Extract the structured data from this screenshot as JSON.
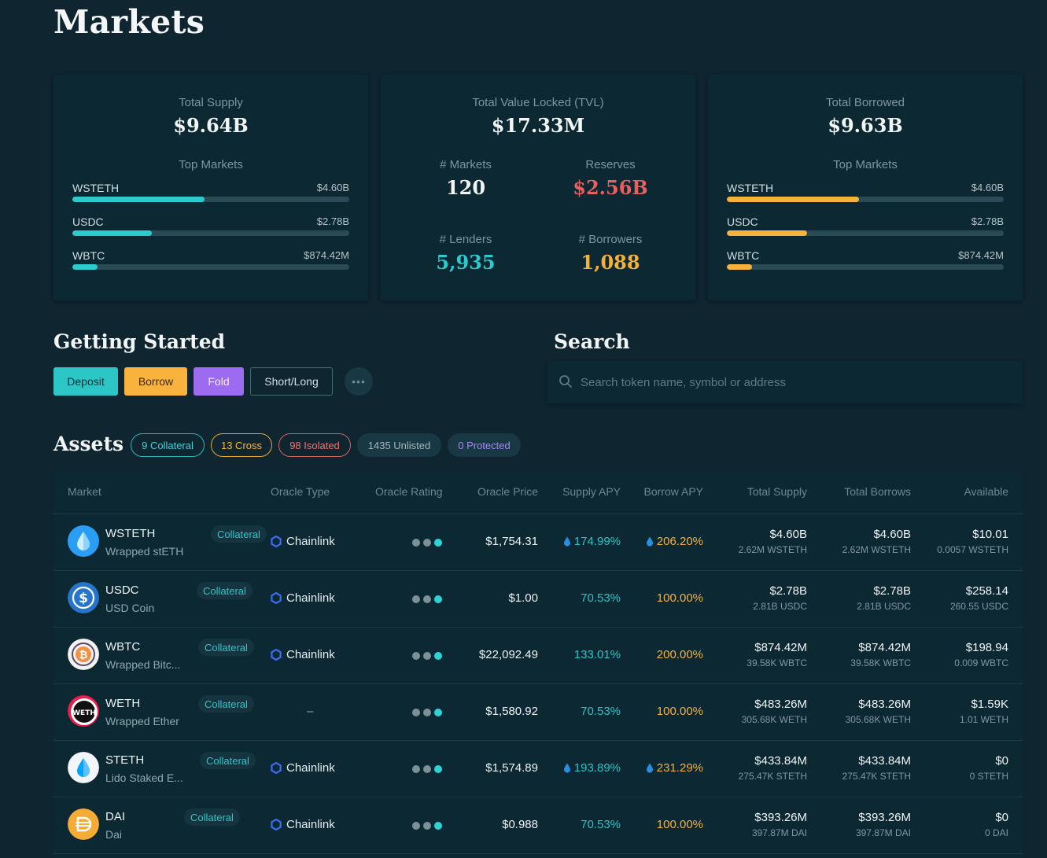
{
  "page": {
    "title": "Markets"
  },
  "summary": {
    "supply": {
      "label": "Total Supply",
      "value": "$9.64B",
      "top_label": "Top Markets",
      "bars": [
        {
          "name": "WSTETH",
          "value": "$4.60B",
          "fraction": 0.477
        },
        {
          "name": "USDC",
          "value": "$2.78B",
          "fraction": 0.288
        },
        {
          "name": "WBTC",
          "value": "$874.42M",
          "fraction": 0.091
        }
      ]
    },
    "tvl": {
      "label": "Total Value Locked (TVL)",
      "value": "$17.33M",
      "markets_label": "# Markets",
      "markets_value": "120",
      "reserves_label": "Reserves",
      "reserves_value": "$2.56B",
      "lenders_label": "# Lenders",
      "lenders_value": "5,935",
      "borrowers_label": "# Borrowers",
      "borrowers_value": "1,088"
    },
    "borrowed": {
      "label": "Total Borrowed",
      "value": "$9.63B",
      "top_label": "Top Markets",
      "bars": [
        {
          "name": "WSTETH",
          "value": "$4.60B",
          "fraction": 0.477
        },
        {
          "name": "USDC",
          "value": "$2.78B",
          "fraction": 0.289
        },
        {
          "name": "WBTC",
          "value": "$874.42M",
          "fraction": 0.091
        }
      ]
    }
  },
  "getting_started": {
    "title": "Getting Started",
    "buttons": {
      "deposit": "Deposit",
      "borrow": "Borrow",
      "fold": "Fold",
      "shortlong": "Short/Long",
      "more": "•••"
    }
  },
  "search": {
    "title": "Search",
    "placeholder": "Search token name, symbol or address"
  },
  "assets": {
    "title": "Assets",
    "filters": {
      "collateral": "9 Collateral",
      "cross": "13 Cross",
      "isolated": "98 Isolated",
      "unlisted": "1435 Unlisted",
      "protected": "0 Protected"
    }
  },
  "table": {
    "headers": {
      "market": "Market",
      "oracle_type": "Oracle Type",
      "oracle_rating": "Oracle Rating",
      "oracle_price": "Oracle Price",
      "supply_apy": "Supply APY",
      "borrow_apy": "Borrow APY",
      "total_supply": "Total Supply",
      "total_borrows": "Total Borrows",
      "available": "Available"
    },
    "rows": [
      {
        "symbol": "WSTETH",
        "tag": "Collateral",
        "name": "Wrapped stETH",
        "oracle": "Chainlink",
        "price": "$1,754.31",
        "supply_apy": "174.99%",
        "borrow_apy": "206.20%",
        "supply_boost": true,
        "borrow_boost": true,
        "total_supply": "$4.60B",
        "total_supply_sub": "2.62M WSTETH",
        "total_borrows": "$4.60B",
        "total_borrows_sub": "2.62M WSTETH",
        "available": "$10.01",
        "available_sub": "0.0057 WSTETH",
        "icon": "wsteth-icon",
        "color": "#2a9df4"
      },
      {
        "symbol": "USDC",
        "tag": "Collateral",
        "name": "USD Coin",
        "oracle": "Chainlink",
        "price": "$1.00",
        "supply_apy": "70.53%",
        "borrow_apy": "100.00%",
        "supply_boost": false,
        "borrow_boost": false,
        "total_supply": "$2.78B",
        "total_supply_sub": "2.81B USDC",
        "total_borrows": "$2.78B",
        "total_borrows_sub": "2.81B USDC",
        "available": "$258.14",
        "available_sub": "260.55 USDC",
        "icon": "usdc-icon",
        "color": "#2775ca"
      },
      {
        "symbol": "WBTC",
        "tag": "Collateral",
        "name": "Wrapped Bitc...",
        "oracle": "Chainlink",
        "price": "$22,092.49",
        "supply_apy": "133.01%",
        "borrow_apy": "200.00%",
        "supply_boost": false,
        "borrow_boost": false,
        "total_supply": "$874.42M",
        "total_supply_sub": "39.58K WBTC",
        "total_borrows": "$874.42M",
        "total_borrows_sub": "39.58K WBTC",
        "available": "$198.94",
        "available_sub": "0.009 WBTC",
        "icon": "wbtc-icon",
        "color": "#f09242"
      },
      {
        "symbol": "WETH",
        "tag": "Collateral",
        "name": "Wrapped Ether",
        "oracle": "–",
        "price": "$1,580.92",
        "supply_apy": "70.53%",
        "borrow_apy": "100.00%",
        "supply_boost": false,
        "borrow_boost": false,
        "total_supply": "$483.26M",
        "total_supply_sub": "305.68K WETH",
        "total_borrows": "$483.26M",
        "total_borrows_sub": "305.68K WETH",
        "available": "$1.59K",
        "available_sub": "1.01 WETH",
        "icon": "weth-icon",
        "color": "#ec1c4b"
      },
      {
        "symbol": "STETH",
        "tag": "Collateral",
        "name": "Lido Staked E...",
        "oracle": "Chainlink",
        "price": "$1,574.89",
        "supply_apy": "193.89%",
        "borrow_apy": "231.29%",
        "supply_boost": true,
        "borrow_boost": true,
        "total_supply": "$433.84M",
        "total_supply_sub": "275.47K STETH",
        "total_borrows": "$433.84M",
        "total_borrows_sub": "275.47K STETH",
        "available": "$0",
        "available_sub": "0 STETH",
        "icon": "steth-icon",
        "color": "#00a3ff"
      },
      {
        "symbol": "DAI",
        "tag": "Collateral",
        "name": "Dai",
        "oracle": "Chainlink",
        "price": "$0.988",
        "supply_apy": "70.53%",
        "borrow_apy": "100.00%",
        "supply_boost": false,
        "borrow_boost": false,
        "total_supply": "$393.26M",
        "total_supply_sub": "397.87M DAI",
        "total_borrows": "$393.26M",
        "total_borrows_sub": "397.87M DAI",
        "available": "$0",
        "available_sub": "0 DAI",
        "icon": "dai-icon",
        "color": "#f5ac37"
      }
    ]
  }
}
